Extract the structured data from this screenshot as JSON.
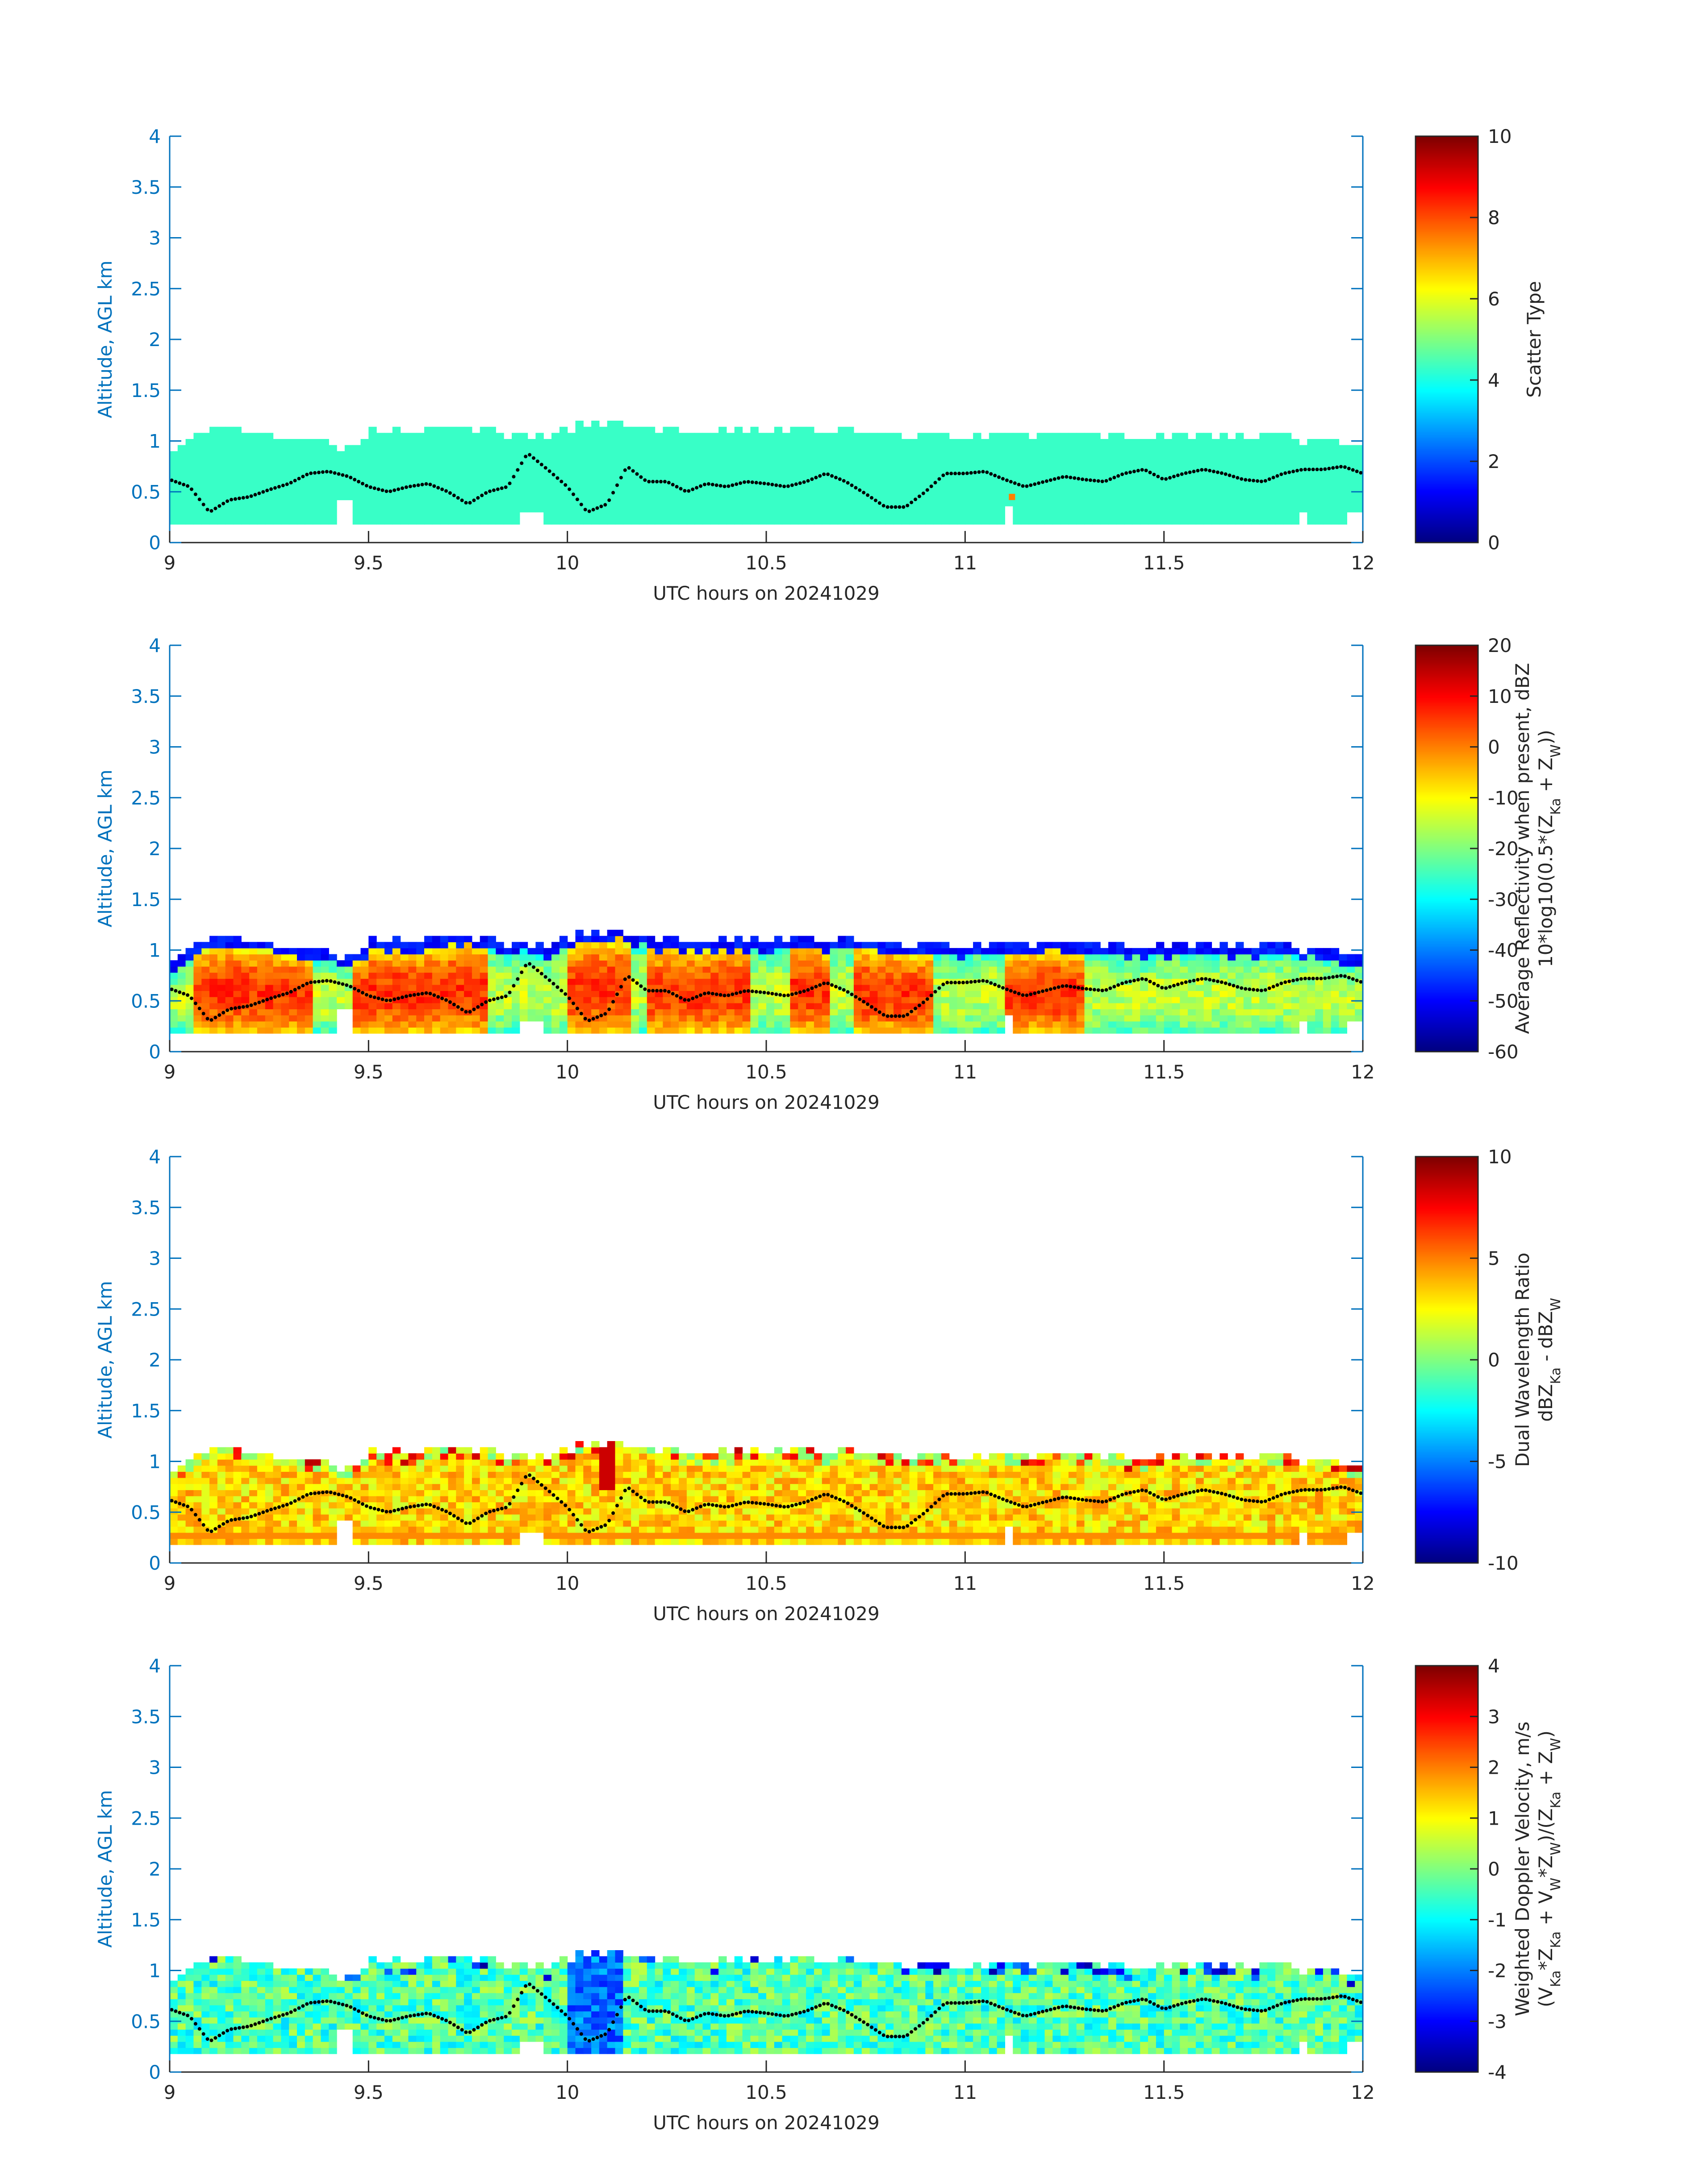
{
  "figure": {
    "background": "#ffffff",
    "axis_color": "#0072bd",
    "text_color": "#262626",
    "colormap": "jet"
  },
  "chart_data": [
    {
      "type": "heatmap",
      "panel": "scatter-type",
      "xlabel": "UTC hours on 20241029",
      "ylabel": "Altitude, AGL km",
      "xlim": [
        9,
        12
      ],
      "ylim": [
        0,
        4
      ],
      "xticks": [
        "9",
        "9.5",
        "10",
        "10.5",
        "11",
        "11.5",
        "12"
      ],
      "yticks": [
        "0",
        "0.5",
        "1",
        "1.5",
        "2",
        "2.5",
        "3",
        "3.5",
        "4"
      ],
      "colorbar": {
        "label_lines": [
          "Scatter Type"
        ],
        "range": [
          0,
          10
        ],
        "ticks": [
          "0",
          "2",
          "4",
          "6",
          "8",
          "10"
        ]
      },
      "field": "uniform",
      "dominant_value": 4.3,
      "value_range": [
        4,
        4.5
      ],
      "layer_base_km": 0.18,
      "cloud_top_km_note": "top of echo between about 1.0 and 1.2 km",
      "highlight": {
        "x": 11.11,
        "y": 0.42,
        "value": 7.5
      }
    },
    {
      "type": "heatmap",
      "panel": "reflectivity",
      "xlabel": "UTC hours on 20241029",
      "ylabel": "Altitude, AGL km",
      "xlim": [
        9,
        12
      ],
      "ylim": [
        0,
        4
      ],
      "xticks": [
        "9",
        "9.5",
        "10",
        "10.5",
        "11",
        "11.5",
        "12"
      ],
      "yticks": [
        "0",
        "0.5",
        "1",
        "1.5",
        "2",
        "2.5",
        "3",
        "3.5",
        "4"
      ],
      "colorbar": {
        "label_lines": [
          "Average Reflectivity when present, dBZ",
          "10*log10(0.5*(Z_Ka + Z_W))"
        ],
        "range": [
          -60,
          20
        ],
        "ticks": [
          "-60",
          "-50",
          "-40",
          "-30",
          "-20",
          "-10",
          "0",
          "10",
          "20"
        ]
      },
      "field": "reflectivity",
      "value_range": [
        -60,
        5
      ],
      "strong_cores_utc": [
        [
          9.05,
          9.35
        ],
        [
          9.47,
          9.8
        ],
        [
          10.0,
          10.15
        ],
        [
          10.2,
          10.45
        ],
        [
          10.55,
          10.65
        ],
        [
          10.72,
          10.92
        ],
        [
          11.1,
          11.3
        ]
      ]
    },
    {
      "type": "heatmap",
      "panel": "dwr",
      "xlabel": "UTC hours on 20241029",
      "ylabel": "Altitude, AGL km",
      "xlim": [
        9,
        12
      ],
      "ylim": [
        0,
        4
      ],
      "xticks": [
        "9",
        "9.5",
        "10",
        "10.5",
        "11",
        "11.5",
        "12"
      ],
      "yticks": [
        "0",
        "0.5",
        "1",
        "1.5",
        "2",
        "2.5",
        "3",
        "3.5",
        "4"
      ],
      "colorbar": {
        "label_lines": [
          "Dual Wavelength Ratio",
          "dBZ_Ka - dBZ_W"
        ],
        "range": [
          -10,
          10
        ],
        "ticks": [
          "-10",
          "-5",
          "0",
          "5",
          "10"
        ]
      },
      "field": "dwr",
      "value_range": [
        -2,
        9
      ],
      "bottom_band": {
        "y": 0.27,
        "value": 4.8
      }
    },
    {
      "type": "heatmap",
      "panel": "doppler",
      "xlabel": "UTC hours on 20241029",
      "ylabel": "Altitude, AGL km",
      "xlim": [
        9,
        12
      ],
      "ylim": [
        0,
        4
      ],
      "xticks": [
        "9",
        "9.5",
        "10",
        "10.5",
        "11",
        "11.5",
        "12"
      ],
      "yticks": [
        "0",
        "0.5",
        "1",
        "1.5",
        "2",
        "2.5",
        "3",
        "3.5",
        "4"
      ],
      "colorbar": {
        "label_lines": [
          "Weighted Doppler Velocity, m/s",
          "(V_Ka*Z_Ka + V_W*Z_W)/(Z_Ka + Z_W)"
        ],
        "range": [
          -4,
          4
        ],
        "ticks": [
          "-4",
          "-3",
          "-2",
          "-1",
          "0",
          "1",
          "2",
          "3",
          "4"
        ]
      },
      "field": "doppler",
      "value_range": [
        -4,
        4
      ]
    }
  ],
  "cloud_boundary": {
    "note": "black dots overplotted on every panel (km vs UTC hours)",
    "x": [
      9.0,
      9.05,
      9.1,
      9.15,
      9.2,
      9.25,
      9.3,
      9.35,
      9.4,
      9.45,
      9.5,
      9.55,
      9.6,
      9.65,
      9.7,
      9.75,
      9.8,
      9.85,
      9.9,
      9.95,
      10.0,
      10.05,
      10.1,
      10.15,
      10.2,
      10.25,
      10.3,
      10.35,
      10.4,
      10.45,
      10.5,
      10.55,
      10.6,
      10.65,
      10.7,
      10.75,
      10.8,
      10.85,
      10.9,
      10.95,
      11.0,
      11.05,
      11.1,
      11.15,
      11.2,
      11.25,
      11.3,
      11.35,
      11.4,
      11.45,
      11.5,
      11.55,
      11.6,
      11.65,
      11.7,
      11.75,
      11.8,
      11.85,
      11.9,
      11.95,
      12.0
    ],
    "y": [
      0.62,
      0.55,
      0.3,
      0.42,
      0.45,
      0.52,
      0.58,
      0.68,
      0.7,
      0.65,
      0.55,
      0.5,
      0.55,
      0.58,
      0.5,
      0.38,
      0.5,
      0.55,
      0.88,
      0.72,
      0.55,
      0.3,
      0.38,
      0.75,
      0.6,
      0.6,
      0.5,
      0.58,
      0.55,
      0.6,
      0.58,
      0.55,
      0.6,
      0.68,
      0.6,
      0.48,
      0.35,
      0.35,
      0.5,
      0.68,
      0.68,
      0.7,
      0.62,
      0.55,
      0.6,
      0.65,
      0.62,
      0.6,
      0.68,
      0.72,
      0.62,
      0.68,
      0.72,
      0.68,
      0.62,
      0.6,
      0.68,
      0.72,
      0.72,
      0.75,
      0.68
    ]
  },
  "layer_top": {
    "note": "approximate echo top (km) vs UTC hours, used for all panels",
    "x": [
      9.0,
      9.05,
      9.1,
      9.15,
      9.2,
      9.3,
      9.35,
      9.4,
      9.45,
      9.5,
      9.6,
      9.7,
      9.75,
      9.8,
      9.85,
      9.9,
      9.95,
      10.0,
      10.05,
      10.1,
      10.15,
      10.2,
      10.3,
      10.4,
      10.5,
      10.6,
      10.7,
      10.8,
      10.9,
      11.0,
      11.1,
      11.2,
      11.3,
      11.4,
      11.5,
      11.6,
      11.7,
      11.8,
      11.9,
      12.0
    ],
    "y": [
      0.85,
      1.0,
      1.1,
      1.08,
      1.05,
      1.02,
      0.95,
      0.92,
      0.9,
      1.05,
      1.08,
      1.12,
      1.12,
      1.08,
      1.0,
      1.05,
      1.0,
      1.1,
      1.15,
      1.18,
      1.12,
      1.08,
      1.08,
      1.08,
      1.08,
      1.08,
      1.08,
      1.05,
      1.0,
      1.02,
      1.02,
      1.05,
      1.05,
      1.02,
      1.03,
      1.02,
      1.02,
      1.0,
      0.98,
      0.92
    ]
  },
  "gaps": [
    {
      "x0": 9.43,
      "x1": 9.46,
      "y0": 0.0,
      "y1": 0.4
    },
    {
      "x0": 9.88,
      "x1": 9.95,
      "y0": 0.0,
      "y1": 0.32
    },
    {
      "x0": 11.1,
      "x1": 11.12,
      "y0": 0.0,
      "y1": 0.35
    },
    {
      "x0": 11.85,
      "x1": 11.87,
      "y0": 0.0,
      "y1": 0.3
    },
    {
      "x0": 11.97,
      "x1": 12.0,
      "y0": 0.0,
      "y1": 0.28
    }
  ]
}
